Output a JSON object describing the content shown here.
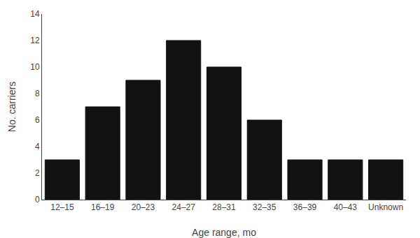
{
  "chart_data": {
    "type": "bar",
    "categories": [
      "12–15",
      "16–19",
      "20–23",
      "24–27",
      "28–31",
      "32–35",
      "36–39",
      "40–43",
      "Unknown"
    ],
    "values": [
      3,
      7,
      9,
      12,
      10,
      6,
      3,
      3,
      3
    ],
    "color": "#111111",
    "xlabel": "Age range, mo",
    "ylabel": "No. carriers",
    "ylim": [
      0,
      14
    ],
    "yticks": [
      0,
      2,
      4,
      6,
      8,
      10,
      12,
      14
    ],
    "grid": false
  }
}
